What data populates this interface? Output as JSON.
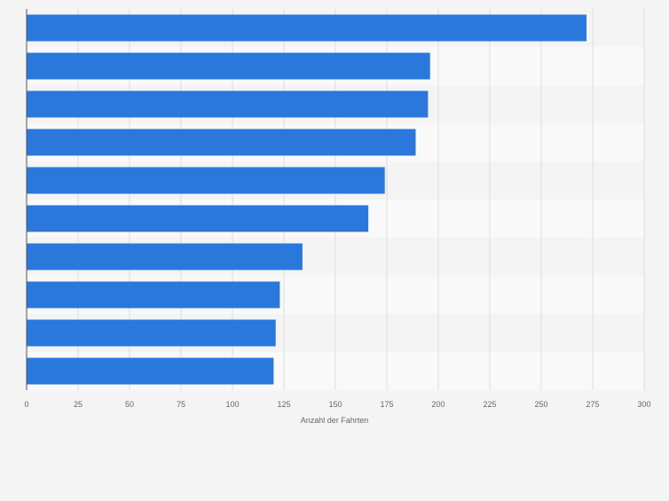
{
  "chart_data": {
    "type": "bar",
    "orientation": "horizontal",
    "categories": [
      "",
      "",
      "",
      "",
      "",
      "",
      "",
      "",
      "",
      ""
    ],
    "values": [
      272,
      196,
      195,
      189,
      174,
      166,
      134,
      123,
      121,
      120
    ],
    "title": "",
    "xlabel": "Anzahl der Fahrten",
    "ylabel": "",
    "xlim": [
      0,
      300
    ],
    "x_ticks": [
      "0",
      "25",
      "50",
      "75",
      "100",
      "125",
      "150",
      "175",
      "200",
      "225",
      "250",
      "275",
      "300"
    ],
    "grid": true,
    "bar_color": "#2a78dc",
    "band_colors": [
      "#f4f4f4",
      "#f9f9f9"
    ],
    "grid_color": "#dddddd",
    "axis_color": "#555555"
  }
}
